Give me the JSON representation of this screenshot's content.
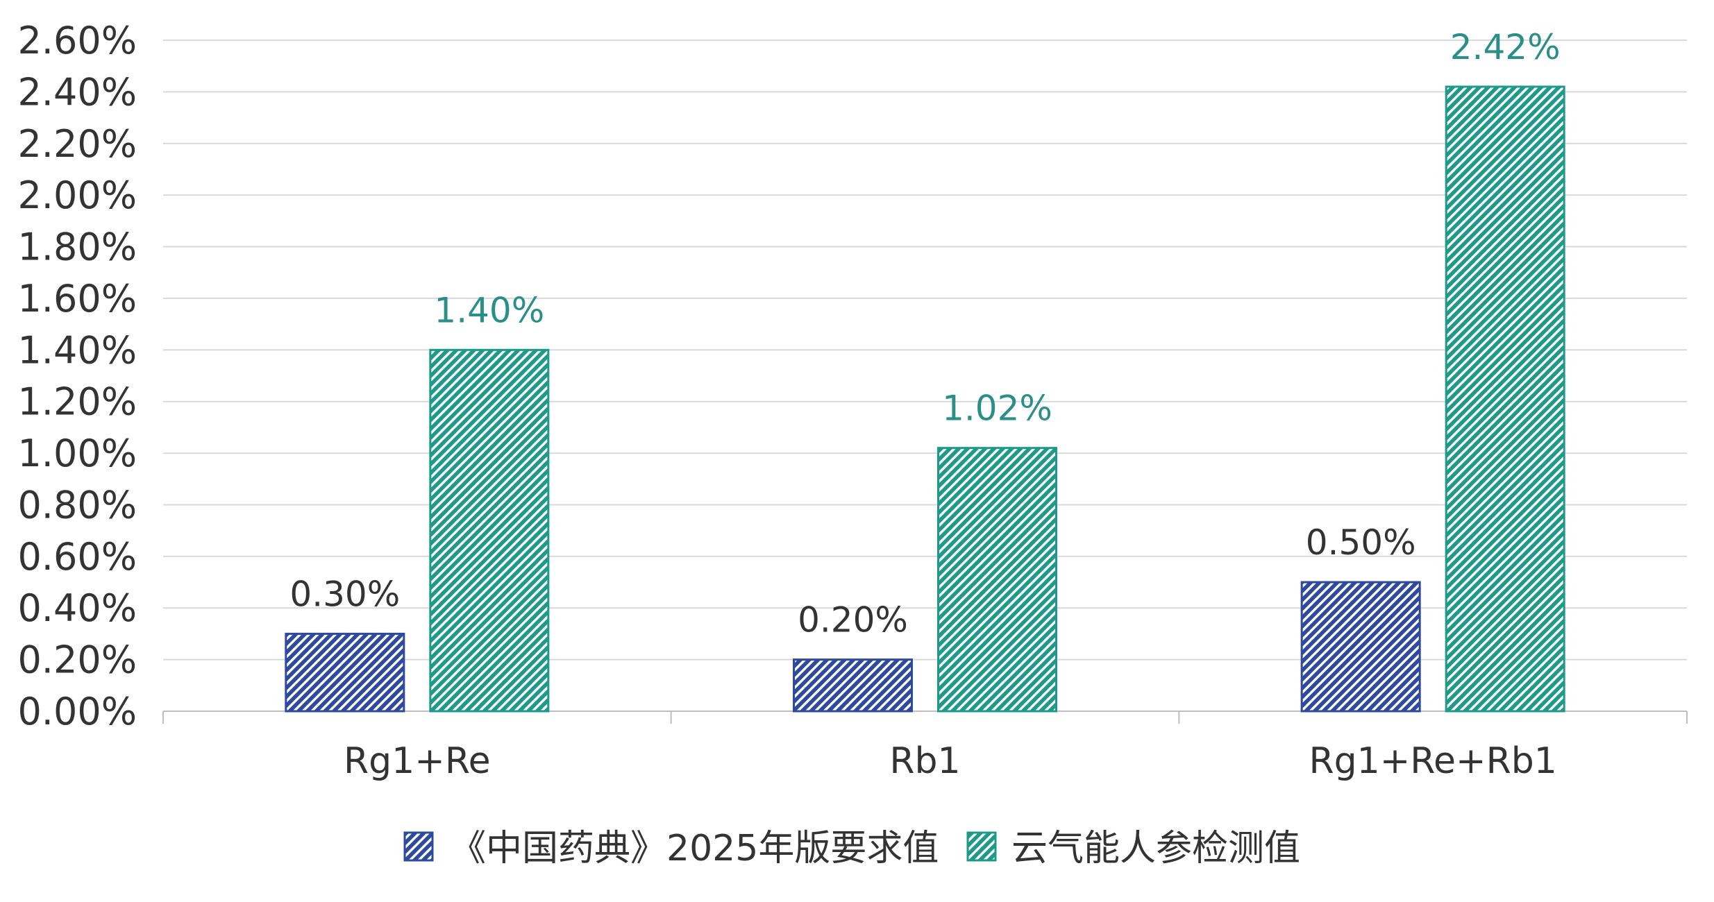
{
  "chart_data": {
    "type": "bar",
    "categories": [
      "Rg1+Re",
      "Rb1",
      "Rg1+Re+Rb1"
    ],
    "series": [
      {
        "name": "《中国药典》2025年版要求值",
        "values": [
          0.3,
          0.2,
          0.5
        ],
        "labels": [
          "0.30%",
          "0.20%",
          "0.50%"
        ],
        "color": "#2E4A9E",
        "label_color": "#333333",
        "pattern": "diagonal-hatch"
      },
      {
        "name": "云气能人参检测值",
        "values": [
          1.4,
          1.02,
          2.42
        ],
        "labels": [
          "1.40%",
          "1.02%",
          "2.42%"
        ],
        "color": "#1E9A8A",
        "label_color": "#2A8F88",
        "pattern": "diagonal-hatch"
      }
    ],
    "yaxis": {
      "ticks": [
        0.0,
        0.2,
        0.4,
        0.6,
        0.8,
        1.0,
        1.2,
        1.4,
        1.6,
        1.8,
        2.0,
        2.2,
        2.4,
        2.6
      ],
      "tick_labels": [
        "0.00%",
        "0.20%",
        "0.40%",
        "0.60%",
        "0.80%",
        "1.00%",
        "1.20%",
        "1.40%",
        "1.60%",
        "1.80%",
        "2.00%",
        "2.20%",
        "2.40%",
        "2.60%"
      ],
      "ylim": [
        0,
        2.6
      ]
    },
    "title": "",
    "xlabel": "",
    "ylabel": "",
    "grid": true,
    "legend_position": "bottom",
    "gridline_color": "#D9D9D9",
    "axis_color": "#BFBFBF"
  }
}
